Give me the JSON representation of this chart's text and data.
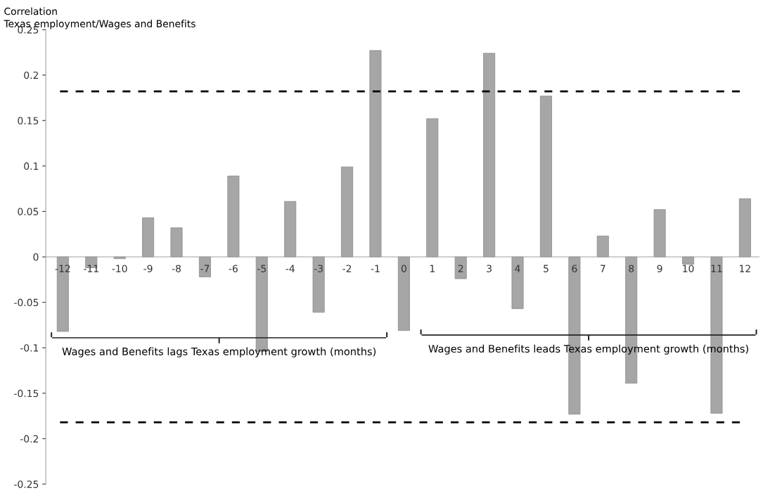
{
  "chart_data": {
    "type": "bar",
    "title": "Correlation",
    "subtitle": "Texas employment/Wages and Benefits",
    "categories": [
      "-12",
      "-11",
      "-10",
      "-9",
      "-8",
      "-7",
      "-6",
      "-5",
      "-4",
      "-3",
      "-2",
      "-1",
      "0",
      "1",
      "2",
      "3",
      "4",
      "5",
      "6",
      "7",
      "8",
      "9",
      "10",
      "11",
      "12"
    ],
    "values": [
      -0.082,
      -0.012,
      -0.002,
      0.043,
      0.032,
      -0.022,
      0.089,
      -0.104,
      0.061,
      -0.061,
      0.099,
      0.227,
      -0.081,
      0.152,
      -0.024,
      0.224,
      -0.057,
      0.177,
      -0.173,
      0.023,
      -0.139,
      0.052,
      -0.008,
      -0.172,
      0.064
    ],
    "color": "#a6a6a6",
    "ylim": [
      -0.25,
      0.25
    ],
    "yticks": [
      -0.25,
      -0.2,
      -0.15,
      -0.1,
      -0.05,
      0,
      0.05,
      0.1,
      0.15,
      0.2,
      0.25
    ],
    "ref_lines": [
      {
        "axis": "y",
        "value": 0.182,
        "color": "#000000",
        "line_style": "dashed"
      },
      {
        "axis": "y",
        "value": -0.182,
        "color": "#000000",
        "line_style": "dashed"
      }
    ],
    "annotations": [
      "Wages and Benefits lags Texas employment growth (months)",
      "Wages and Benefits leads Texas employment growth (months)"
    ],
    "grid": false,
    "legend": false
  }
}
